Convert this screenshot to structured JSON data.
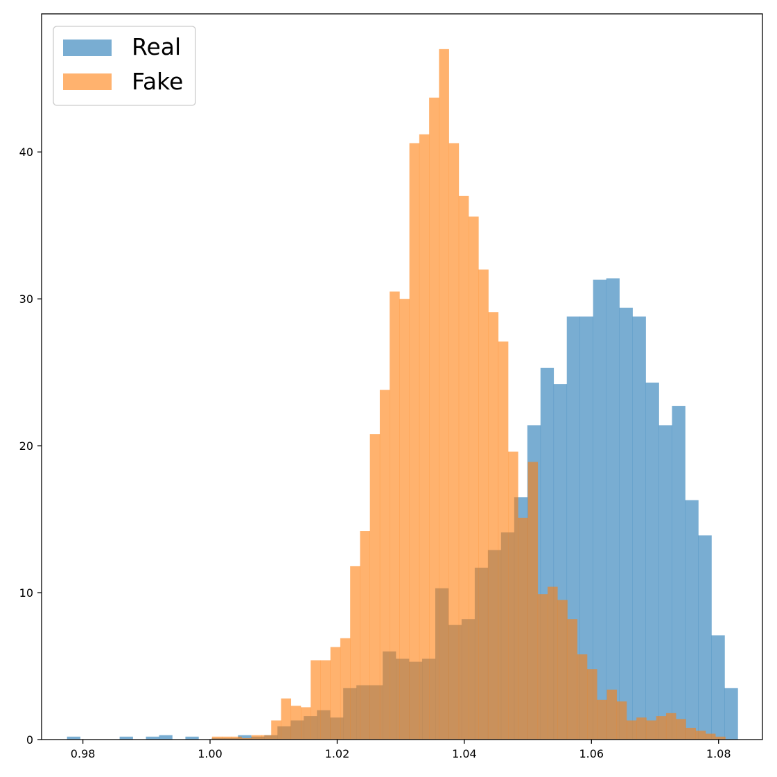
{
  "chart_data": {
    "type": "bar",
    "subtype": "overlaid-histogram",
    "title": "",
    "xlabel": "",
    "ylabel": "",
    "xlim": [
      0.9735,
      1.0869
    ],
    "ylim": [
      0,
      49.4
    ],
    "xticks": [
      0.98,
      1.0,
      1.02,
      1.04,
      1.06,
      1.08
    ],
    "xtick_labels": [
      "0.98",
      "1.00",
      "1.02",
      "1.04",
      "1.06",
      "1.08"
    ],
    "yticks": [
      0,
      10,
      20,
      30,
      40
    ],
    "ytick_labels": [
      "0",
      "10",
      "20",
      "30",
      "40"
    ],
    "grid": false,
    "legend_position": "top-left",
    "series": [
      {
        "name": "Real",
        "color": "#1f77b4",
        "opacity": 0.6,
        "bin_start": 0.9775,
        "bin_width": 0.002069,
        "counts": [
          0.2,
          0,
          0,
          0,
          0.2,
          0,
          0.2,
          0.3,
          0,
          0.2,
          0,
          0.1,
          0.1,
          0.3,
          0.2,
          0.3,
          0.9,
          1.3,
          1.6,
          2.0,
          1.5,
          3.5,
          3.7,
          3.7,
          6.0,
          5.5,
          5.3,
          5.5,
          10.3,
          7.8,
          8.2,
          11.7,
          12.9,
          14.1,
          16.5,
          21.4,
          25.3,
          24.2,
          28.8,
          28.8,
          31.3,
          31.4,
          29.4,
          28.8,
          24.3,
          21.4,
          22.7,
          16.3,
          13.9,
          7.1,
          3.5
        ]
      },
      {
        "name": "Fake",
        "color": "#ff7f0e",
        "opacity": 0.6,
        "bin_start": 1.0003,
        "bin_width": 0.001553,
        "counts": [
          0.2,
          0.2,
          0.2,
          0.1,
          0.3,
          0.3,
          1.3,
          2.8,
          2.3,
          2.2,
          5.4,
          5.4,
          6.3,
          6.9,
          11.8,
          14.2,
          20.8,
          23.8,
          30.5,
          30.0,
          40.6,
          41.2,
          43.7,
          47.0,
          40.6,
          37.0,
          35.6,
          32.0,
          29.1,
          27.1,
          19.6,
          15.1,
          18.9,
          9.9,
          10.4,
          9.5,
          8.2,
          5.8,
          4.8,
          2.7,
          3.4,
          2.6,
          1.3,
          1.5,
          1.3,
          1.6,
          1.8,
          1.4,
          0.8,
          0.6,
          0.4,
          0.2
        ]
      }
    ]
  }
}
